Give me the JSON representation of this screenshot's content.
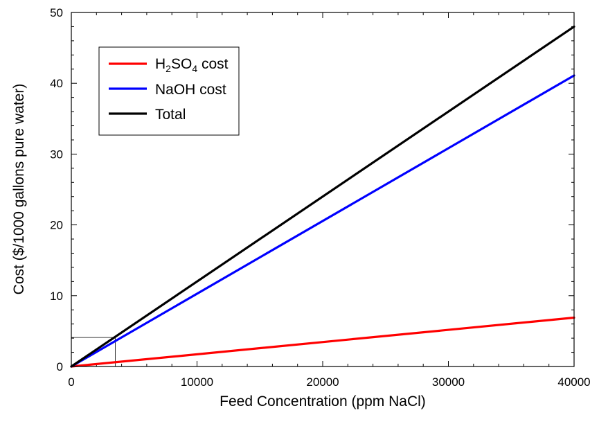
{
  "chart_data": {
    "type": "line",
    "xlabel": "Feed Concentration (ppm NaCl)",
    "ylabel": "Cost ($/1000 gallons pure water)",
    "xlim": [
      0,
      40000
    ],
    "ylim": [
      0,
      50
    ],
    "x_ticks": [
      0,
      10000,
      20000,
      30000,
      40000
    ],
    "y_ticks": [
      0,
      10,
      20,
      30,
      40,
      50
    ],
    "x_tick_labels": [
      "0",
      "10000",
      "20000",
      "30000",
      "40000"
    ],
    "y_tick_labels": [
      "0",
      "10",
      "20",
      "30",
      "40",
      "50"
    ],
    "grid": false,
    "legend_position": "top-left",
    "series": [
      {
        "name": "H2SO4 cost",
        "legend_parts": {
          "base": "H",
          "sub1": "2",
          "mid": "SO",
          "sub2": "4",
          "tail": " cost"
        },
        "color": "#ff0000",
        "x": [
          0,
          40000
        ],
        "y": [
          0,
          6.9
        ]
      },
      {
        "name": "NaOH cost",
        "color": "#0000ff",
        "x": [
          0,
          40000
        ],
        "y": [
          0,
          41.1
        ]
      },
      {
        "name": "Total",
        "color": "#000000",
        "x": [
          0,
          40000
        ],
        "y": [
          0,
          48.0
        ]
      }
    ],
    "reference_box": {
      "x": 3500,
      "y": 4.1
    }
  }
}
